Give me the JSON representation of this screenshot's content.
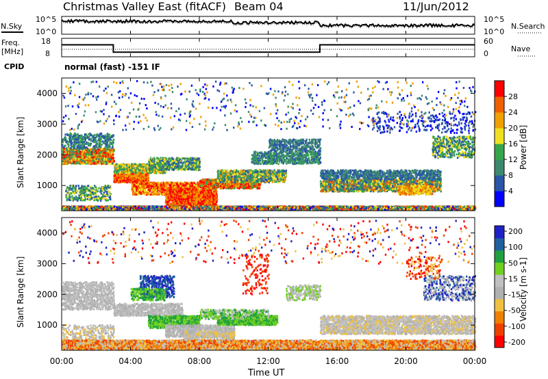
{
  "header": {
    "title": "Christmas Valley East (fitACF)",
    "beam": "Beam 04",
    "date": "11/Jun/2012"
  },
  "left_labels": {
    "nsky": "N.Sky",
    "freq": "Freq.",
    "freq_unit": "[MHz]",
    "cpid": "CPID"
  },
  "right_labels": {
    "nsearch": "N.Search",
    "nave": "Nave"
  },
  "cpid_text": "normal (fast) -151 IF",
  "x_axis": {
    "label": "Time UT",
    "ticks": [
      "00:00",
      "04:00",
      "08:00",
      "12:00",
      "16:00",
      "20:00",
      "00:00"
    ]
  },
  "colors": {
    "power": [
      "#0000ff",
      "#2a56a8",
      "#3c8a6e",
      "#36a64a",
      "#f0e020",
      "#f0a000",
      "#f06000",
      "#ff0000"
    ],
    "velocity": [
      "#2020c8",
      "#2060a0",
      "#20a040",
      "#70d020",
      "#c0c0c0",
      "#b0b0b0",
      "#f0c040",
      "#f08000",
      "#f04000",
      "#ff0000"
    ]
  },
  "chart_data": [
    {
      "type": "line",
      "name": "N.Sky / N.Search",
      "ylabel": "N.Sky",
      "yticks": [
        "10^5",
        "10^0"
      ],
      "y2ticks": [
        "10^5",
        "10^0"
      ],
      "y2label": "N.Search"
    },
    {
      "type": "line",
      "name": "Freq / Nave",
      "ylabel": "Freq. [MHz]",
      "yticks": [
        8,
        18
      ],
      "y2ticks": [
        0,
        60
      ],
      "y2label": "Nave",
      "x": [
        0,
        3,
        3,
        15,
        15,
        24
      ],
      "frequency_mhz": [
        14.5,
        14.5,
        10.5,
        10.5,
        14.5,
        14.5
      ]
    },
    {
      "type": "heatmap",
      "name": "Power",
      "xlabel": "Time UT",
      "ylabel": "Slant Range [km]",
      "xlim": [
        0,
        24
      ],
      "ylim": [
        180,
        4500
      ],
      "yticks": [
        1000,
        2000,
        3000,
        4000
      ],
      "colorbar_label": "Power [dB]",
      "colorbar_ticks": [
        4,
        8,
        12,
        16,
        20,
        24,
        28
      ],
      "clim": [
        0,
        32
      ]
    },
    {
      "type": "heatmap",
      "name": "Velocity",
      "xlabel": "Time UT",
      "ylabel": "Slant Range [km]",
      "xlim": [
        0,
        24
      ],
      "ylim": [
        180,
        4500
      ],
      "yticks": [
        1000,
        2000,
        3000,
        4000
      ],
      "colorbar_label": "Velocity [m s-1]",
      "colorbar_ticks": [
        200,
        100,
        50,
        15,
        -15,
        -50,
        -100,
        -200
      ]
    }
  ]
}
